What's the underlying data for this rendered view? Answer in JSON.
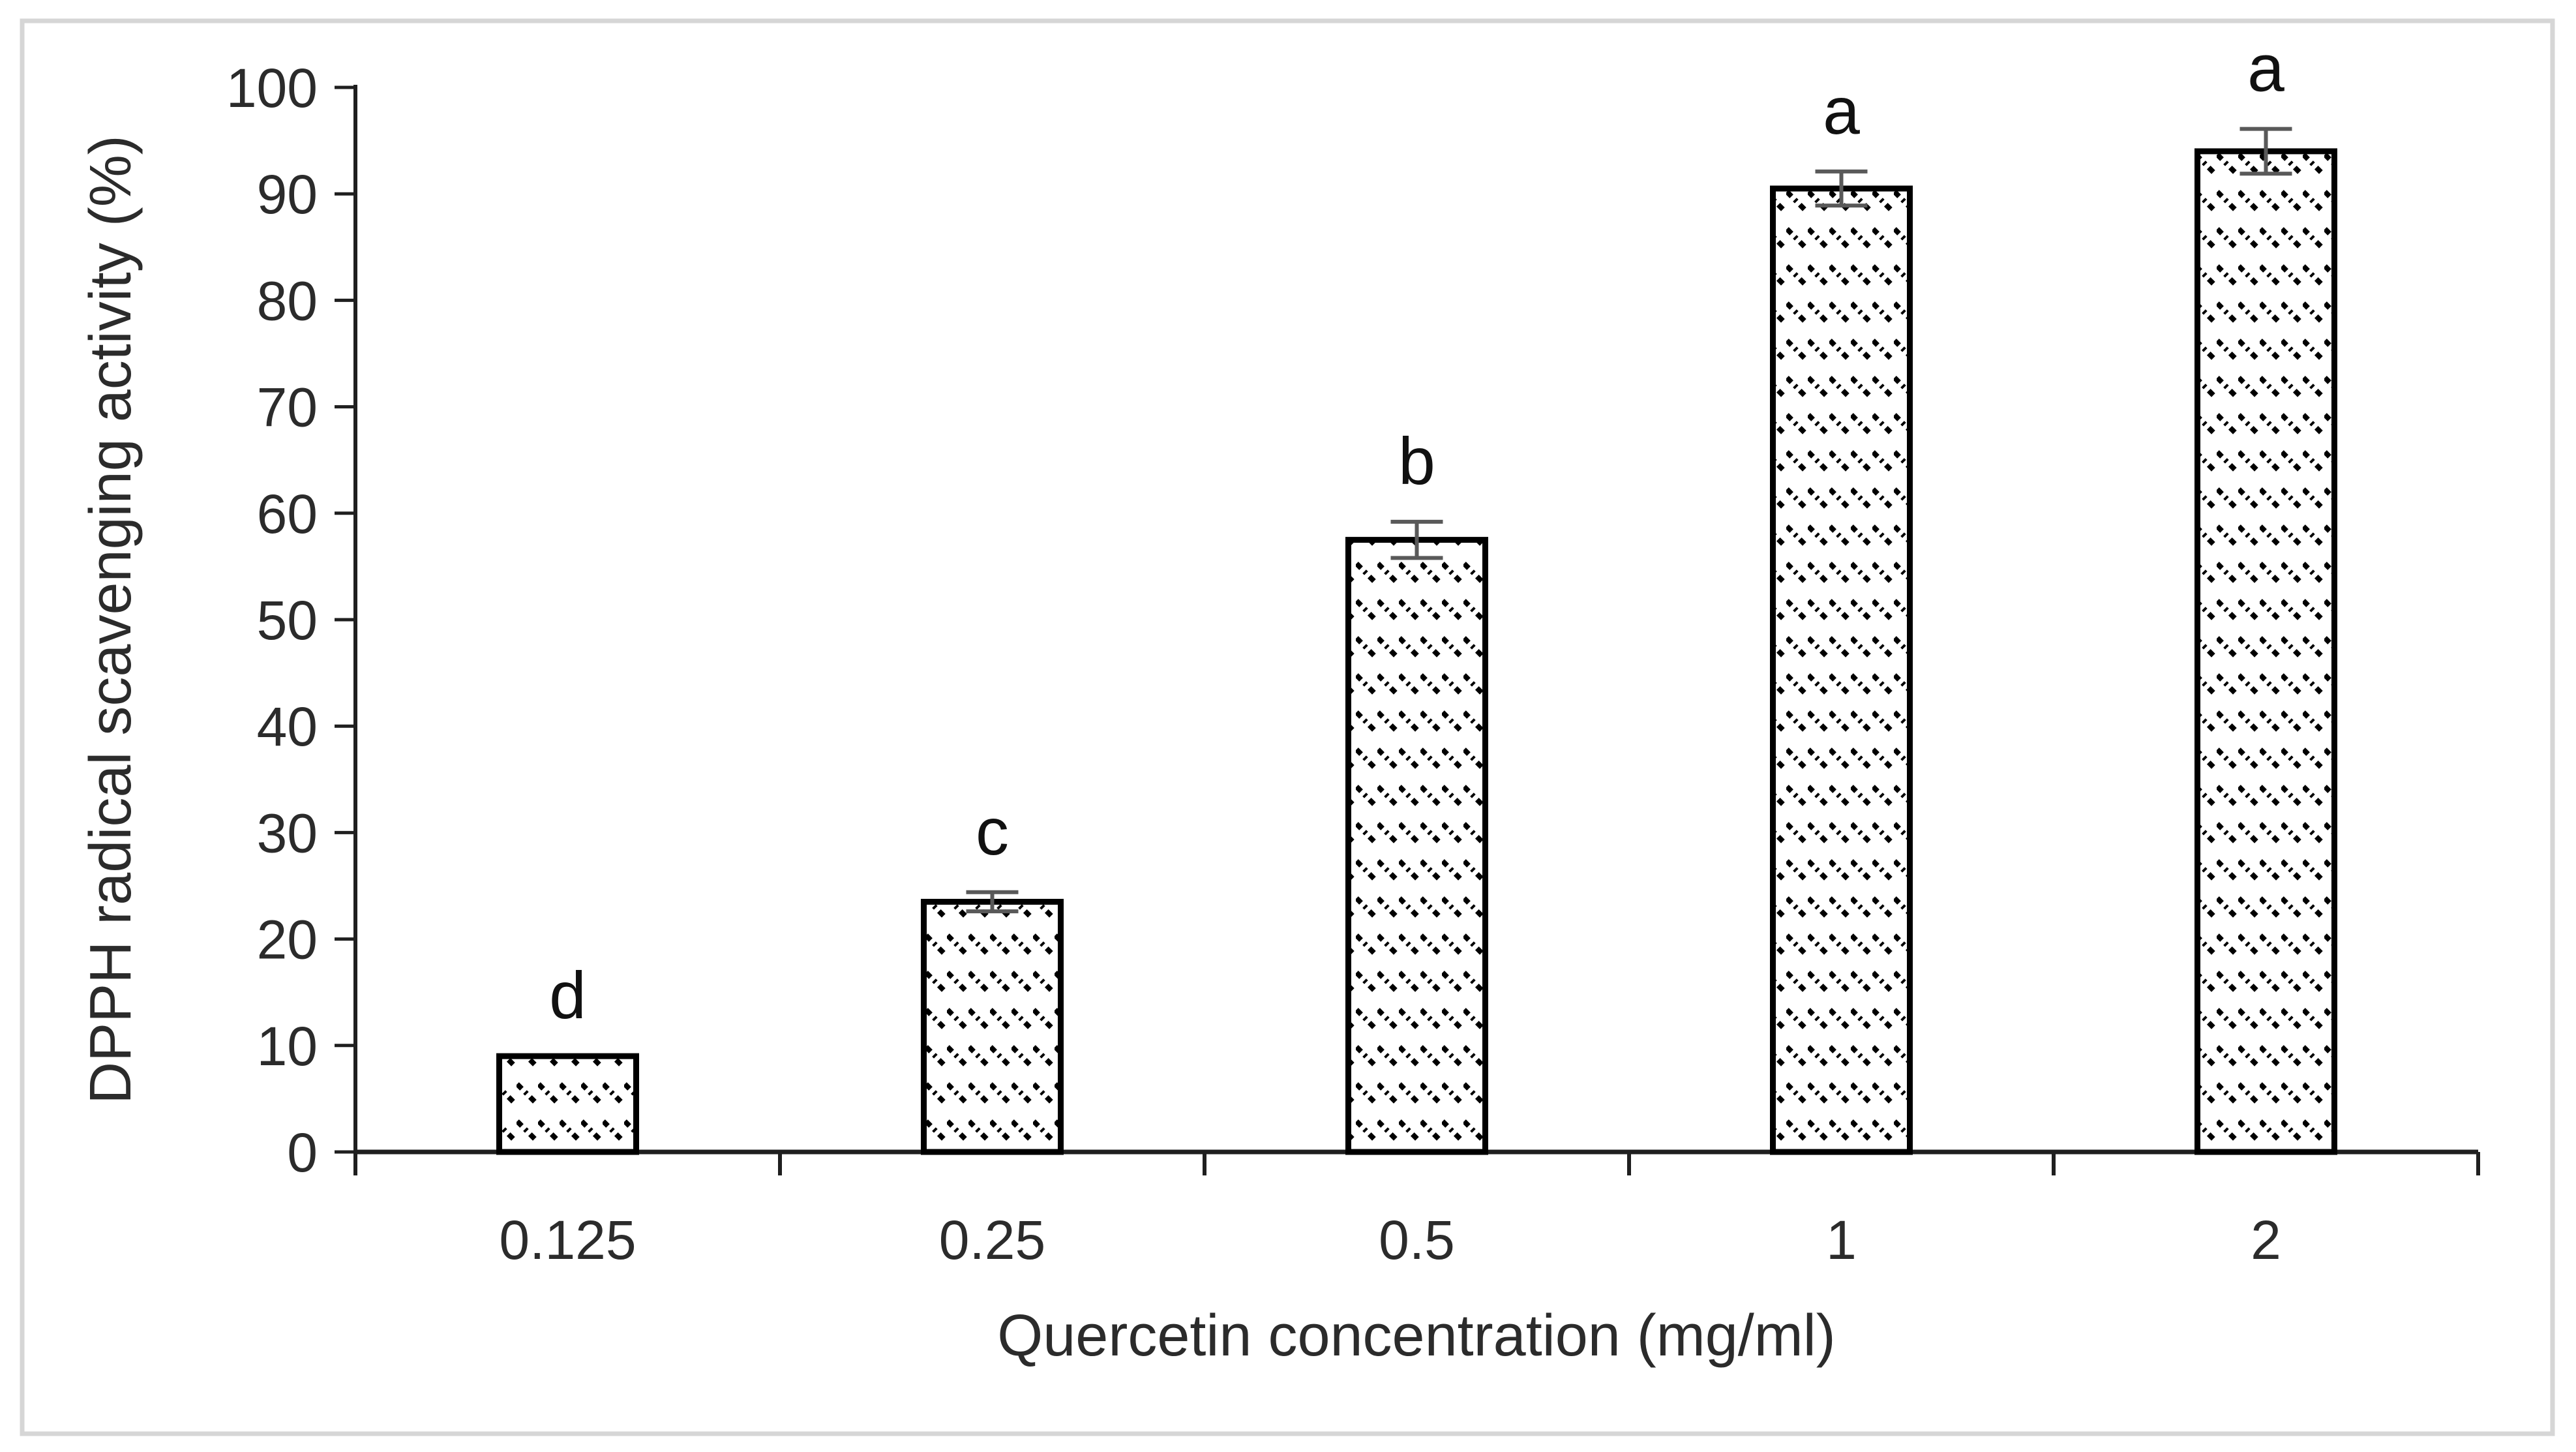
{
  "figure": {
    "background": "#ffffff",
    "border_color": "#d6d6d6",
    "axis_color": "#1f1f1f",
    "error_bar_color": "#595959",
    "bar_fill": "#ffffff",
    "bar_hatch": "dashed-downward-diagonal",
    "bar_outline": "#000000"
  },
  "chart_data": {
    "type": "bar",
    "title": "",
    "xlabel": "Quercetin concentration (mg/ml)",
    "ylabel": "DPPH radical scavenging activity (%)",
    "categories": [
      "0.125",
      "0.25",
      "0.5",
      "1",
      "2"
    ],
    "values": [
      9,
      23.5,
      57.5,
      90.5,
      94
    ],
    "errors": [
      0,
      0.9,
      1.7,
      1.6,
      2.1
    ],
    "sig_letters": [
      "d",
      "c",
      "b",
      "a",
      "a"
    ],
    "ylim": [
      0,
      100
    ],
    "yticks": [
      0,
      10,
      20,
      30,
      40,
      50,
      60,
      70,
      80,
      90,
      100
    ],
    "grid": false,
    "legend": null
  }
}
